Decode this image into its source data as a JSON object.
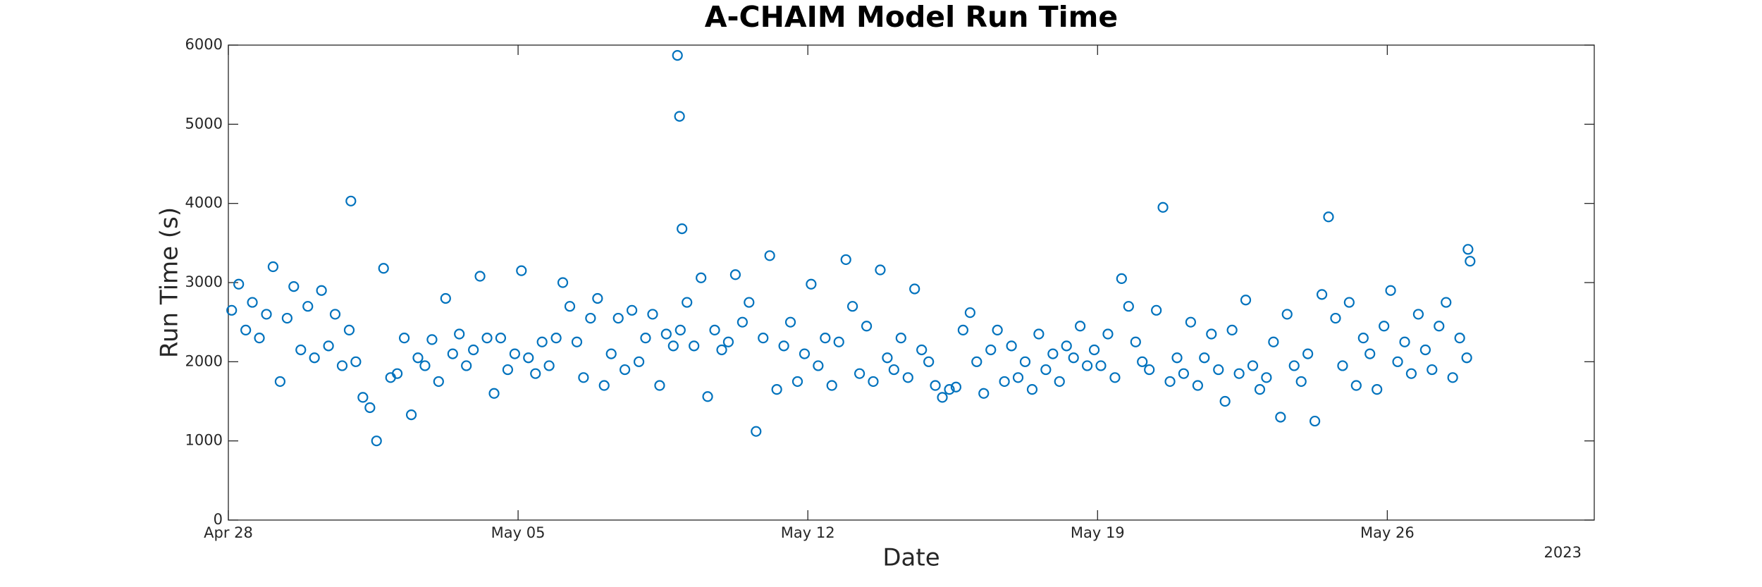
{
  "chart_data": {
    "type": "scatter",
    "title": "A-CHAIM Model Run Time",
    "x_label": "Date",
    "y_label": "Run Time (s)",
    "x_axis_year": "2023",
    "color": "#0072bd",
    "xlim": [
      0,
      33
    ],
    "ylim": [
      0,
      6000
    ],
    "xticks": [
      {
        "value": 0,
        "label": "Apr 28"
      },
      {
        "value": 7,
        "label": "May 05"
      },
      {
        "value": 14,
        "label": "May 12"
      },
      {
        "value": 21,
        "label": "May 19"
      },
      {
        "value": 28,
        "label": "May 26"
      }
    ],
    "yticks": [
      0,
      1000,
      2000,
      3000,
      4000,
      5000,
      6000
    ],
    "x": [
      0.08,
      0.25,
      0.42,
      0.58,
      0.75,
      0.92,
      1.08,
      1.25,
      1.42,
      1.58,
      1.75,
      1.92,
      2.08,
      2.25,
      2.42,
      2.58,
      2.75,
      2.92,
      3.08,
      3.25,
      3.42,
      3.58,
      3.75,
      3.92,
      4.08,
      4.25,
      4.42,
      4.58,
      4.75,
      4.92,
      5.08,
      5.25,
      5.42,
      5.58,
      5.75,
      5.92,
      6.08,
      6.25,
      6.42,
      6.58,
      6.75,
      6.92,
      7.08,
      7.25,
      7.42,
      7.58,
      7.75,
      7.92,
      8.08,
      8.25,
      8.42,
      8.58,
      8.75,
      8.92,
      9.08,
      9.25,
      9.42,
      9.58,
      9.75,
      9.92,
      10.08,
      10.25,
      10.42,
      10.58,
      10.75,
      10.92,
      11.08,
      11.25,
      11.42,
      11.58,
      11.75,
      11.92,
      12.08,
      12.25,
      12.42,
      12.58,
      12.75,
      12.92,
      13.08,
      13.25,
      13.42,
      13.58,
      13.75,
      13.92,
      14.08,
      14.25,
      14.42,
      14.58,
      14.75,
      14.92,
      15.08,
      15.25,
      15.42,
      15.58,
      15.75,
      15.92,
      16.08,
      16.25,
      16.42,
      16.58,
      16.75,
      16.92,
      17.08,
      17.25,
      17.42,
      17.58,
      17.75,
      17.92,
      18.08,
      18.25,
      18.42,
      18.58,
      18.75,
      18.92,
      19.08,
      19.25,
      19.42,
      19.58,
      19.75,
      19.92,
      20.08,
      20.25,
      20.42,
      20.58,
      20.75,
      20.92,
      21.08,
      21.25,
      21.42,
      21.58,
      21.75,
      21.92,
      22.08,
      22.25,
      22.42,
      22.58,
      22.75,
      22.92,
      23.08,
      23.25,
      23.42,
      23.58,
      23.75,
      23.92,
      24.08,
      24.25,
      24.42,
      24.58,
      24.75,
      24.92,
      25.08,
      25.25,
      25.42,
      25.58,
      25.75,
      25.92,
      26.08,
      26.25,
      26.42,
      26.58,
      26.75,
      26.92,
      27.08,
      27.25,
      27.42,
      27.58,
      27.75,
      27.92,
      28.08,
      28.25,
      28.42,
      28.58,
      28.75,
      28.92,
      29.08,
      29.25,
      29.42,
      29.58,
      29.75,
      29.92,
      10.85,
      10.9,
      10.96,
      2.96,
      29.95,
      30.0
    ],
    "values": [
      2650,
      2980,
      2400,
      2750,
      2300,
      2600,
      3200,
      1750,
      2550,
      2950,
      2150,
      2700,
      2050,
      2900,
      2200,
      2600,
      1950,
      2400,
      2000,
      1550,
      1420,
      1000,
      3180,
      1800,
      1850,
      2300,
      1330,
      2050,
      1950,
      2280,
      1750,
      2800,
      2100,
      2350,
      1950,
      2150,
      3080,
      2300,
      1600,
      2300,
      1900,
      2100,
      3150,
      2050,
      1850,
      2250,
      1950,
      2300,
      3000,
      2700,
      2250,
      1800,
      2550,
      2800,
      1700,
      2100,
      2550,
      1900,
      2650,
      2000,
      2300,
      2600,
      1700,
      2350,
      2200,
      2400,
      2750,
      2200,
      3060,
      1560,
      2400,
      2150,
      2250,
      3100,
      2500,
      2750,
      1120,
      2300,
      3340,
      1650,
      2200,
      2500,
      1750,
      2100,
      2980,
      1950,
      2300,
      1700,
      2250,
      3290,
      2700,
      1850,
      2450,
      1750,
      3160,
      2050,
      1900,
      2300,
      1800,
      2920,
      2150,
      2000,
      1700,
      1550,
      1650,
      1680,
      2400,
      2620,
      2000,
      1600,
      2150,
      2400,
      1750,
      2200,
      1800,
      2000,
      1650,
      2350,
      1900,
      2100,
      1750,
      2200,
      2050,
      2450,
      1950,
      2150,
      1950,
      2350,
      1800,
      3050,
      2700,
      2250,
      2000,
      1900,
      2650,
      3950,
      1750,
      2050,
      1850,
      2500,
      1700,
      2050,
      2350,
      1900,
      1500,
      2400,
      1850,
      2780,
      1950,
      1650,
      1800,
      2250,
      1300,
      2600,
      1950,
      1750,
      2100,
      1250,
      2850,
      3830,
      2550,
      1950,
      2750,
      1700,
      2300,
      2100,
      1650,
      2450,
      2900,
      2000,
      2250,
      1850,
      2600,
      2150,
      1900,
      2450,
      2750,
      1800,
      2300,
      2050,
      5870,
      5100,
      3680,
      4030,
      3420,
      3270
    ]
  }
}
